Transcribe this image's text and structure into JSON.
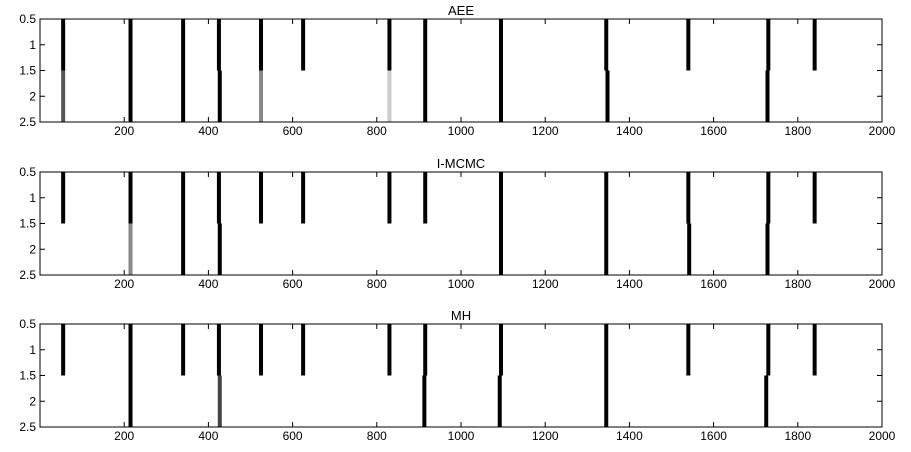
{
  "chart_data": [
    {
      "type": "raster",
      "title": "AEE",
      "xlim": [
        0,
        2000
      ],
      "ylim": [
        0.5,
        2.5
      ],
      "y_reversed": true,
      "xticks": [
        200,
        400,
        600,
        800,
        1000,
        1200,
        1400,
        1600,
        1800,
        2000
      ],
      "yticks": [
        0.5,
        1,
        1.5,
        2,
        2.5
      ],
      "grid": false,
      "rows": [
        {
          "row": 1,
          "events": [
            {
              "x": 55,
              "color": "#000000"
            },
            {
              "x": 215,
              "color": "#000000"
            },
            {
              "x": 340,
              "color": "#000000"
            },
            {
              "x": 425,
              "color": "#000000"
            },
            {
              "x": 525,
              "color": "#000000"
            },
            {
              "x": 625,
              "color": "#000000"
            },
            {
              "x": 830,
              "color": "#000000"
            },
            {
              "x": 915,
              "color": "#000000"
            },
            {
              "x": 1095,
              "color": "#000000"
            },
            {
              "x": 1345,
              "color": "#000000"
            },
            {
              "x": 1540,
              "color": "#000000"
            },
            {
              "x": 1730,
              "color": "#000000"
            },
            {
              "x": 1840,
              "color": "#000000"
            }
          ]
        },
        {
          "row": 2,
          "events": [
            {
              "x": 55,
              "color": "#555555"
            },
            {
              "x": 215,
              "color": "#000000"
            },
            {
              "x": 340,
              "color": "#000000"
            },
            {
              "x": 427,
              "color": "#000000"
            },
            {
              "x": 525,
              "color": "#888888"
            },
            {
              "x": 830,
              "color": "#cccccc"
            },
            {
              "x": 915,
              "color": "#000000"
            },
            {
              "x": 1095,
              "color": "#000000"
            },
            {
              "x": 1348,
              "color": "#000000"
            },
            {
              "x": 1728,
              "color": "#000000"
            }
          ]
        }
      ]
    },
    {
      "type": "raster",
      "title": "I-MCMC",
      "xlim": [
        0,
        2000
      ],
      "ylim": [
        0.5,
        2.5
      ],
      "y_reversed": true,
      "xticks": [
        200,
        400,
        600,
        800,
        1000,
        1200,
        1400,
        1600,
        1800,
        2000
      ],
      "yticks": [
        0.5,
        1,
        1.5,
        2,
        2.5
      ],
      "grid": false,
      "rows": [
        {
          "row": 1,
          "events": [
            {
              "x": 55,
              "color": "#000000"
            },
            {
              "x": 215,
              "color": "#000000"
            },
            {
              "x": 340,
              "color": "#000000"
            },
            {
              "x": 425,
              "color": "#000000"
            },
            {
              "x": 525,
              "color": "#000000"
            },
            {
              "x": 625,
              "color": "#000000"
            },
            {
              "x": 830,
              "color": "#000000"
            },
            {
              "x": 915,
              "color": "#000000"
            },
            {
              "x": 1095,
              "color": "#000000"
            },
            {
              "x": 1345,
              "color": "#000000"
            },
            {
              "x": 1540,
              "color": "#000000"
            },
            {
              "x": 1730,
              "color": "#000000"
            },
            {
              "x": 1840,
              "color": "#000000"
            }
          ]
        },
        {
          "row": 2,
          "events": [
            {
              "x": 215,
              "color": "#888888"
            },
            {
              "x": 340,
              "color": "#000000"
            },
            {
              "x": 427,
              "color": "#000000"
            },
            {
              "x": 1095,
              "color": "#000000"
            },
            {
              "x": 1345,
              "color": "#000000"
            },
            {
              "x": 1542,
              "color": "#000000"
            },
            {
              "x": 1728,
              "color": "#000000"
            }
          ]
        }
      ]
    },
    {
      "type": "raster",
      "title": "MH",
      "xlim": [
        0,
        2000
      ],
      "ylim": [
        0.5,
        2.5
      ],
      "y_reversed": true,
      "xticks": [
        200,
        400,
        600,
        800,
        1000,
        1200,
        1400,
        1600,
        1800,
        2000
      ],
      "yticks": [
        0.5,
        1,
        1.5,
        2,
        2.5
      ],
      "grid": false,
      "rows": [
        {
          "row": 1,
          "events": [
            {
              "x": 55,
              "color": "#000000"
            },
            {
              "x": 215,
              "color": "#000000"
            },
            {
              "x": 340,
              "color": "#000000"
            },
            {
              "x": 425,
              "color": "#000000"
            },
            {
              "x": 525,
              "color": "#000000"
            },
            {
              "x": 625,
              "color": "#000000"
            },
            {
              "x": 830,
              "color": "#000000"
            },
            {
              "x": 915,
              "color": "#000000"
            },
            {
              "x": 1095,
              "color": "#000000"
            },
            {
              "x": 1345,
              "color": "#000000"
            },
            {
              "x": 1540,
              "color": "#000000"
            },
            {
              "x": 1730,
              "color": "#000000"
            },
            {
              "x": 1840,
              "color": "#000000"
            }
          ]
        },
        {
          "row": 2,
          "events": [
            {
              "x": 215,
              "color": "#000000"
            },
            {
              "x": 427,
              "color": "#444444"
            },
            {
              "x": 913,
              "color": "#000000"
            },
            {
              "x": 1092,
              "color": "#000000"
            },
            {
              "x": 1345,
              "color": "#000000"
            },
            {
              "x": 1725,
              "color": "#000000"
            }
          ]
        }
      ]
    }
  ]
}
